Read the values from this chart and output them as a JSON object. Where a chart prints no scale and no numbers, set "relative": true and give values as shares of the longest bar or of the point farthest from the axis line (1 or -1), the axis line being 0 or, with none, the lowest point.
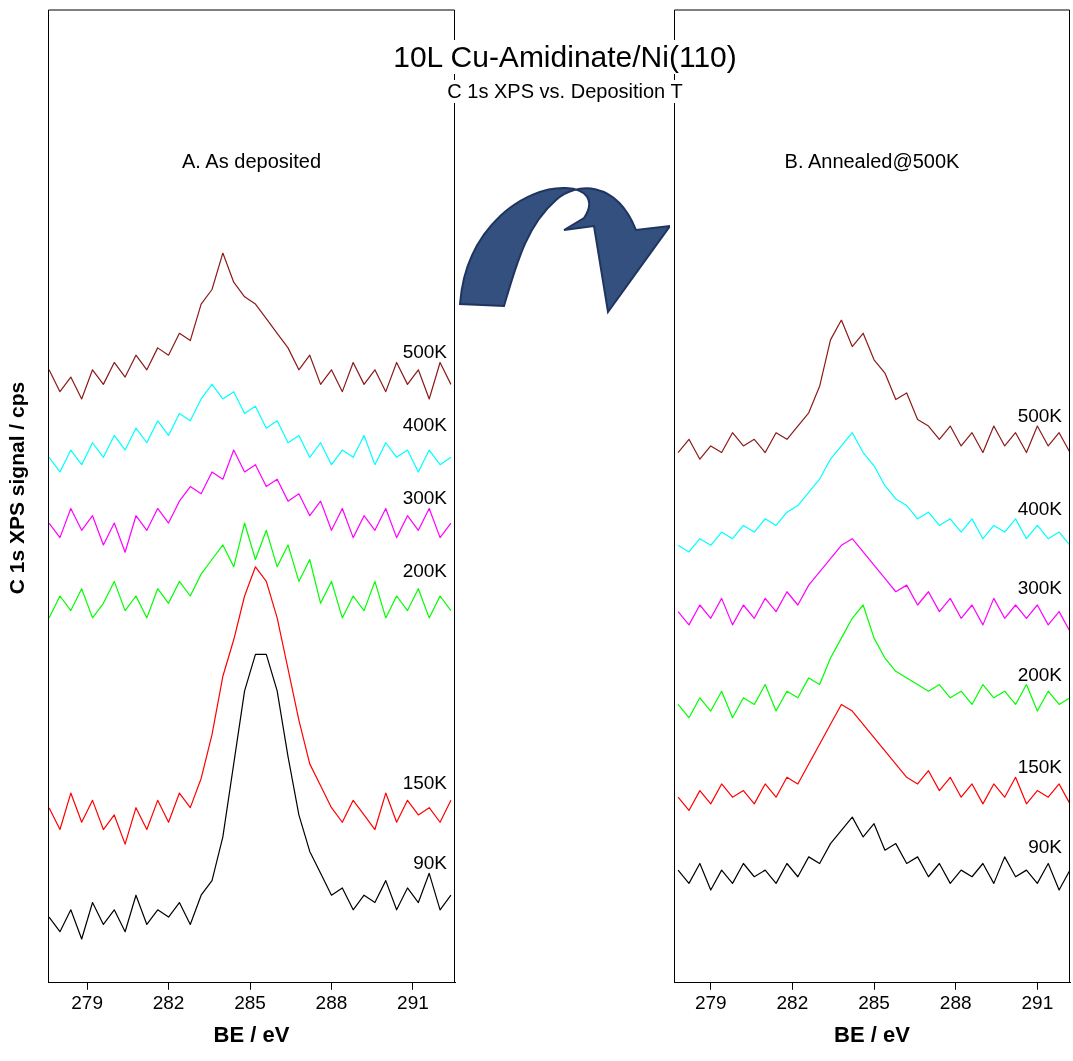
{
  "chart_data": [
    {
      "type": "line",
      "title": "10L Cu-Amidinate/Ni(110)",
      "subtitle": "C 1s XPS vs. Deposition T",
      "xlabel": "BE / eV",
      "ylabel": "C 1s XPS signal / cps",
      "annotations": [
        "A. As deposited"
      ],
      "relative": true,
      "xlim": [
        277.56,
        292.55
      ],
      "xticks": [
        279,
        282,
        285,
        288,
        291
      ],
      "x": [
        277.6,
        278,
        278.4,
        278.8,
        279.2,
        279.6,
        280,
        280.4,
        280.8,
        281.2,
        281.6,
        282,
        282.4,
        282.8,
        283.2,
        283.6,
        284,
        284.4,
        284.8,
        285.2,
        285.6,
        286,
        286.4,
        286.8,
        287.2,
        287.6,
        288,
        288.4,
        288.8,
        289.2,
        289.6,
        290,
        290.4,
        290.8,
        291.2,
        291.6,
        292,
        292.4
      ],
      "series": [
        {
          "name": "90K",
          "color": "#000000",
          "values": [
            0.09,
            0.07,
            0.1,
            0.06,
            0.11,
            0.08,
            0.1,
            0.07,
            0.12,
            0.08,
            0.1,
            0.09,
            0.11,
            0.08,
            0.12,
            0.14,
            0.2,
            0.3,
            0.4,
            0.45,
            0.45,
            0.4,
            0.31,
            0.23,
            0.18,
            0.15,
            0.12,
            0.13,
            0.1,
            0.12,
            0.11,
            0.14,
            0.1,
            0.13,
            0.11,
            0.15,
            0.1,
            0.12
          ]
        },
        {
          "name": "150K",
          "color": "#ff0000",
          "values": [
            0.24,
            0.21,
            0.26,
            0.22,
            0.25,
            0.21,
            0.23,
            0.19,
            0.24,
            0.21,
            0.25,
            0.22,
            0.26,
            0.24,
            0.28,
            0.34,
            0.42,
            0.47,
            0.53,
            0.57,
            0.55,
            0.5,
            0.43,
            0.36,
            0.3,
            0.27,
            0.24,
            0.22,
            0.25,
            0.23,
            0.21,
            0.26,
            0.22,
            0.25,
            0.23,
            0.24,
            0.22,
            0.25
          ]
        },
        {
          "name": "200K",
          "color": "#00ff00",
          "values": [
            0.5,
            0.53,
            0.51,
            0.54,
            0.5,
            0.52,
            0.55,
            0.51,
            0.53,
            0.5,
            0.54,
            0.52,
            0.55,
            0.53,
            0.56,
            0.58,
            0.6,
            0.57,
            0.63,
            0.58,
            0.62,
            0.57,
            0.6,
            0.55,
            0.58,
            0.52,
            0.55,
            0.5,
            0.53,
            0.51,
            0.55,
            0.5,
            0.53,
            0.51,
            0.54,
            0.5,
            0.53,
            0.51
          ]
        },
        {
          "name": "300K",
          "color": "#ff00ff",
          "values": [
            0.63,
            0.61,
            0.65,
            0.62,
            0.64,
            0.6,
            0.63,
            0.59,
            0.64,
            0.62,
            0.65,
            0.63,
            0.66,
            0.68,
            0.67,
            0.7,
            0.69,
            0.73,
            0.7,
            0.71,
            0.68,
            0.69,
            0.66,
            0.67,
            0.64,
            0.66,
            0.62,
            0.65,
            0.61,
            0.64,
            0.62,
            0.65,
            0.61,
            0.64,
            0.62,
            0.65,
            0.61,
            0.63
          ]
        },
        {
          "name": "400K",
          "color": "#00ffff",
          "values": [
            0.72,
            0.7,
            0.73,
            0.71,
            0.74,
            0.72,
            0.75,
            0.73,
            0.76,
            0.74,
            0.77,
            0.75,
            0.78,
            0.77,
            0.8,
            0.82,
            0.8,
            0.81,
            0.78,
            0.79,
            0.76,
            0.77,
            0.74,
            0.75,
            0.72,
            0.74,
            0.71,
            0.73,
            0.72,
            0.75,
            0.71,
            0.74,
            0.72,
            0.73,
            0.7,
            0.73,
            0.71,
            0.72
          ]
        },
        {
          "name": "500K",
          "color": "#8b1a1a",
          "values": [
            0.84,
            0.81,
            0.83,
            0.8,
            0.84,
            0.82,
            0.85,
            0.83,
            0.86,
            0.84,
            0.87,
            0.86,
            0.89,
            0.88,
            0.93,
            0.95,
            1.0,
            0.96,
            0.94,
            0.93,
            0.91,
            0.89,
            0.87,
            0.84,
            0.86,
            0.82,
            0.84,
            0.81,
            0.85,
            0.82,
            0.84,
            0.81,
            0.85,
            0.82,
            0.84,
            0.8,
            0.85,
            0.82
          ]
        }
      ]
    },
    {
      "type": "line",
      "xlabel": "BE / eV",
      "annotations": [
        "B. Annealed@500K"
      ],
      "relative": true,
      "xlim": [
        277.65,
        292.2
      ],
      "xticks": [
        279,
        282,
        285,
        288,
        291
      ],
      "x": [
        277.8,
        278.2,
        278.6,
        279,
        279.4,
        279.8,
        280.2,
        280.6,
        281,
        281.4,
        281.8,
        282.2,
        282.6,
        283,
        283.4,
        283.8,
        284.2,
        284.6,
        285,
        285.4,
        285.8,
        286.2,
        286.6,
        287,
        287.4,
        287.8,
        288.2,
        288.6,
        289,
        289.4,
        289.8,
        290.2,
        290.6,
        291,
        291.4,
        291.8,
        292.2
      ],
      "series": [
        {
          "name": "90K",
          "color": "#000000",
          "values": [
            0.17,
            0.15,
            0.18,
            0.14,
            0.17,
            0.15,
            0.18,
            0.16,
            0.17,
            0.15,
            0.18,
            0.16,
            0.19,
            0.18,
            0.21,
            0.23,
            0.25,
            0.22,
            0.24,
            0.2,
            0.21,
            0.18,
            0.19,
            0.16,
            0.18,
            0.15,
            0.17,
            0.16,
            0.18,
            0.15,
            0.19,
            0.16,
            0.17,
            0.15,
            0.18,
            0.14,
            0.17
          ]
        },
        {
          "name": "150K",
          "color": "#ff0000",
          "values": [
            0.28,
            0.26,
            0.29,
            0.27,
            0.3,
            0.28,
            0.29,
            0.27,
            0.3,
            0.28,
            0.31,
            0.3,
            0.33,
            0.36,
            0.39,
            0.42,
            0.41,
            0.39,
            0.37,
            0.35,
            0.33,
            0.31,
            0.3,
            0.32,
            0.29,
            0.31,
            0.28,
            0.3,
            0.27,
            0.3,
            0.28,
            0.31,
            0.27,
            0.29,
            0.28,
            0.3,
            0.27
          ]
        },
        {
          "name": "200K",
          "color": "#00ff00",
          "values": [
            0.42,
            0.4,
            0.43,
            0.41,
            0.44,
            0.4,
            0.43,
            0.42,
            0.45,
            0.41,
            0.44,
            0.43,
            0.46,
            0.45,
            0.49,
            0.52,
            0.55,
            0.57,
            0.52,
            0.49,
            0.47,
            0.46,
            0.45,
            0.44,
            0.45,
            0.43,
            0.44,
            0.42,
            0.45,
            0.43,
            0.44,
            0.42,
            0.45,
            0.41,
            0.44,
            0.42,
            0.43
          ]
        },
        {
          "name": "300K",
          "color": "#ff00ff",
          "values": [
            0.56,
            0.54,
            0.57,
            0.55,
            0.58,
            0.54,
            0.57,
            0.55,
            0.58,
            0.56,
            0.59,
            0.57,
            0.6,
            0.62,
            0.64,
            0.66,
            0.67,
            0.65,
            0.63,
            0.61,
            0.59,
            0.6,
            0.57,
            0.59,
            0.56,
            0.58,
            0.55,
            0.57,
            0.54,
            0.58,
            0.55,
            0.57,
            0.55,
            0.57,
            0.54,
            0.56,
            0.53
          ]
        },
        {
          "name": "400K",
          "color": "#00ffff",
          "values": [
            0.66,
            0.65,
            0.67,
            0.66,
            0.68,
            0.67,
            0.69,
            0.68,
            0.7,
            0.69,
            0.71,
            0.72,
            0.74,
            0.76,
            0.79,
            0.81,
            0.83,
            0.8,
            0.78,
            0.75,
            0.73,
            0.72,
            0.7,
            0.71,
            0.69,
            0.7,
            0.68,
            0.7,
            0.67,
            0.69,
            0.68,
            0.7,
            0.67,
            0.69,
            0.67,
            0.68,
            0.66
          ]
        },
        {
          "name": "500K",
          "color": "#8b1a1a",
          "values": [
            0.8,
            0.82,
            0.79,
            0.81,
            0.8,
            0.83,
            0.81,
            0.82,
            0.8,
            0.83,
            0.82,
            0.84,
            0.86,
            0.9,
            0.97,
            1.0,
            0.96,
            0.98,
            0.94,
            0.92,
            0.88,
            0.89,
            0.85,
            0.84,
            0.82,
            0.84,
            0.81,
            0.83,
            0.8,
            0.84,
            0.81,
            0.83,
            0.8,
            0.84,
            0.81,
            0.83,
            0.8
          ]
        }
      ]
    }
  ]
}
